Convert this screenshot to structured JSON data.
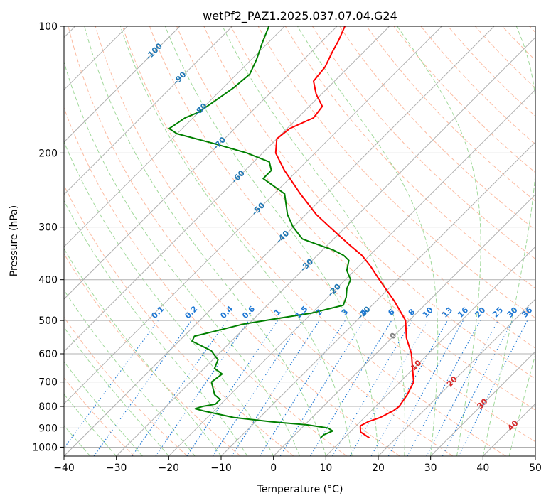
{
  "chart_data": {
    "type": "line",
    "title": "wetPf2_PAZ1.2025.037.07.04.G24",
    "xlabel": "Temperature (°C)",
    "ylabel": "Pressure (hPa)",
    "xlim": [
      -40,
      50
    ],
    "ylim": [
      1050,
      100
    ],
    "y_scale": "log",
    "skew": "skew-T log-P",
    "grid": true,
    "x_ticks": [
      -40,
      -30,
      -20,
      -10,
      0,
      10,
      20,
      30,
      40,
      50
    ],
    "y_ticks": [
      100,
      200,
      300,
      400,
      500,
      600,
      700,
      800,
      900,
      1000
    ],
    "colors": {
      "temperature": "#ff0000",
      "dewpoint": "#008000",
      "isotherm": "#b0b0b0",
      "dry_adiabat": "#fcbba1",
      "moist_adiabat": "#a1d99b",
      "mixing_ratio": "#1f78d4",
      "isotherm_label": "#1f77b4",
      "moist_label": "#d62728",
      "freezing_label": "#808080"
    },
    "series": [
      {
        "key": "temperature",
        "pressure": [
          950,
          920,
          890,
          870,
          850,
          820,
          800,
          750,
          700,
          650,
          600,
          550,
          500,
          450,
          400,
          370,
          350,
          330,
          300,
          280,
          250,
          220,
          200,
          185,
          175,
          165,
          155,
          145,
          135,
          125,
          115,
          108,
          100
        ],
        "temperature": [
          14.8,
          12.0,
          10.8,
          11.5,
          13.0,
          14.2,
          14.5,
          13.8,
          12.6,
          9.8,
          6.8,
          2.8,
          -0.7,
          -6.5,
          -13.5,
          -18.0,
          -21.5,
          -26.0,
          -33.0,
          -38.0,
          -45.0,
          -52.5,
          -57.5,
          -60.0,
          -59.5,
          -57.0,
          -57.5,
          -61.0,
          -64.0,
          -64.5,
          -66.0,
          -67.0,
          -68.5
        ]
      },
      {
        "key": "dewpoint",
        "pressure": [
          950,
          935,
          915,
          900,
          885,
          870,
          850,
          820,
          810,
          800,
          790,
          770,
          750,
          700,
          670,
          650,
          620,
          600,
          590,
          560,
          545,
          530,
          510,
          500,
          480,
          460,
          440,
          420,
          400,
          380,
          360,
          350,
          340,
          330,
          320,
          300,
          280,
          250,
          230,
          220,
          210,
          200,
          190,
          180,
          175,
          170,
          165,
          160,
          150,
          140,
          130,
          120,
          110,
          100
        ],
        "dewpoint": [
          5.5,
          5.5,
          6.5,
          5.0,
          0.5,
          -7.0,
          -15.0,
          -22.0,
          -24.0,
          -23.0,
          -21.0,
          -21.0,
          -23.0,
          -26.0,
          -25.5,
          -28.0,
          -29.0,
          -31.0,
          -32.0,
          -37.5,
          -38.0,
          -35.0,
          -31.0,
          -27.5,
          -20.0,
          -15.5,
          -16.5,
          -18.0,
          -19.0,
          -21.5,
          -23.0,
          -25.0,
          -28.0,
          -32.0,
          -36.0,
          -40.0,
          -43.5,
          -48.0,
          -55.0,
          -55.0,
          -57.0,
          -63.0,
          -71.0,
          -80.0,
          -82.5,
          -82.0,
          -81.5,
          -80.0,
          -79.0,
          -78.0,
          -77.5,
          -79.0,
          -81.0,
          -83.0
        ]
      }
    ],
    "isotherm_labels": [
      {
        "value": -100,
        "text": "-100",
        "p": 115
      },
      {
        "value": -90,
        "text": "-90",
        "p": 133
      },
      {
        "value": -80,
        "text": "-80",
        "p": 158
      },
      {
        "value": -70,
        "text": "-70",
        "p": 190
      },
      {
        "value": -60,
        "text": "-60",
        "p": 228
      },
      {
        "value": -50,
        "text": "-50",
        "p": 272
      },
      {
        "value": -40,
        "text": "-40",
        "p": 317
      },
      {
        "value": -30,
        "text": "-30",
        "p": 370
      },
      {
        "value": -20,
        "text": "-20",
        "p": 424
      },
      {
        "value": -10,
        "text": "-10",
        "p": 480
      },
      {
        "value": 0,
        "text": "0",
        "p": 545
      }
    ],
    "mixing_ratio_lines": [
      0.1,
      0.2,
      0.4,
      0.6,
      1,
      1.5,
      2,
      3,
      4,
      6,
      8,
      10,
      13,
      16,
      20,
      25,
      30,
      36
    ],
    "mixing_ratio_labels": [
      "0.1",
      "0.2",
      "0.4",
      "0.6",
      "1",
      "1.5",
      "2",
      "3",
      "4",
      "6",
      "8",
      "10",
      "13",
      "16",
      "20",
      "25",
      "30",
      "36"
    ],
    "mixing_ratio_label_pressure": 500,
    "moist_labels": [
      {
        "value": 10,
        "text": "10",
        "p": 640
      },
      {
        "value": 20,
        "text": "20",
        "p": 700
      },
      {
        "value": 30,
        "text": "30",
        "p": 790
      },
      {
        "value": 40,
        "text": "40",
        "p": 890
      }
    ]
  }
}
